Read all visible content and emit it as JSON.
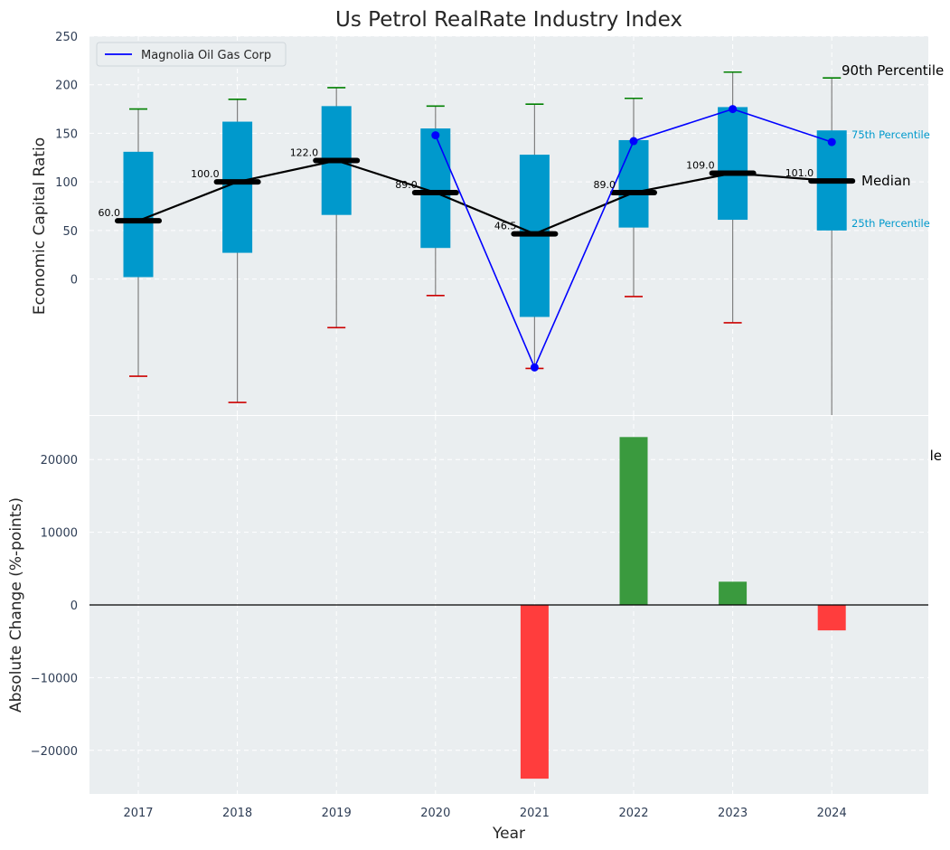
{
  "chart_data": [
    {
      "type": "box",
      "title": "Us Petrol RealRate Industry Index",
      "xlabel": "",
      "ylabel": "Economic Capital Ratio",
      "ylim": [
        -140,
        250
      ],
      "yticks": [
        0,
        50,
        100,
        150,
        200,
        250
      ],
      "categories": [
        "2017",
        "2018",
        "2019",
        "2020",
        "2021",
        "2022",
        "2023",
        "2024"
      ],
      "p10": [
        -100,
        -127,
        -50,
        -17,
        -92,
        -18,
        -45,
        null
      ],
      "p25": [
        2,
        27,
        66,
        32,
        -39,
        53,
        61,
        50
      ],
      "median": [
        60.0,
        100.0,
        122.0,
        89.0,
        46.5,
        89.0,
        109.0,
        101.0
      ],
      "median_labels": [
        "60.0",
        "100.0",
        "122.0",
        "89.0",
        "46.5",
        "89.0",
        "109.0",
        "101.0"
      ],
      "p75": [
        131,
        162,
        178,
        155,
        128,
        143,
        177,
        153
      ],
      "p90": [
        175,
        185,
        197,
        178,
        180,
        186,
        213,
        207
      ],
      "company": {
        "name": "Magnolia Oil Gas Corp",
        "values": [
          null,
          null,
          null,
          148,
          -91,
          142,
          175,
          141
        ]
      },
      "legend": [
        "Magnolia Oil Gas Corp"
      ],
      "annotations": {
        "p90": "90th Percentile",
        "p75": "75th Percentile",
        "median": "Median",
        "p25": "25th Percentile"
      },
      "colors": {
        "box": "#0099cc",
        "median": "#000000",
        "company": "#0000ff",
        "whisker_high": "#008000",
        "whisker_low": "#cc0000",
        "whisker_line": "#808080",
        "background": "#eaeef0",
        "annotation_blue": "#0099cc"
      }
    },
    {
      "type": "bar",
      "xlabel": "Year",
      "ylabel": "Absolute Change (%-points)",
      "ylim": [
        -26000,
        26000
      ],
      "yticks": [
        -20000,
        -10000,
        0,
        10000,
        20000
      ],
      "ytick_labels": [
        "−20000",
        "−10000",
        "0",
        "10000",
        "20000"
      ],
      "categories": [
        "2017",
        "2018",
        "2019",
        "2020",
        "2021",
        "2022",
        "2023",
        "2024"
      ],
      "values": [
        null,
        null,
        null,
        null,
        -23900,
        23100,
        3200,
        -3500
      ],
      "clipped_annotation": "le",
      "colors": {
        "positive": "#3a9a3e",
        "negative": "#ff3d3d",
        "zero_line": "#000000"
      }
    }
  ]
}
